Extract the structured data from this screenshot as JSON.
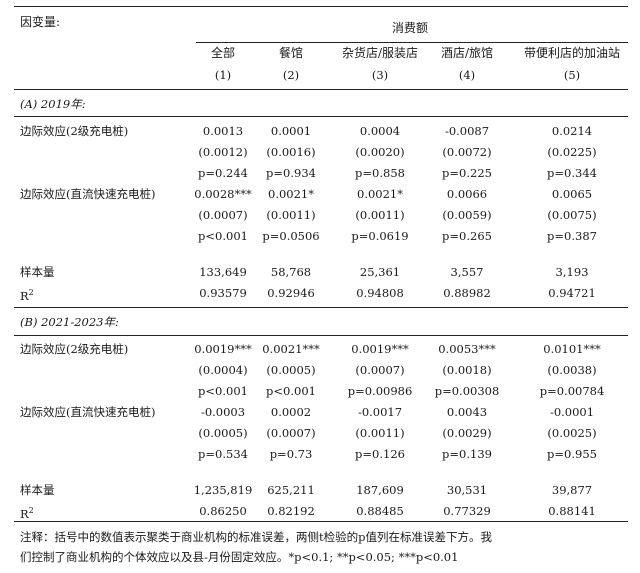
{
  "header": {
    "dep_var_label": "因变量:",
    "group_title": "消费额",
    "columns": [
      {
        "name": "全部",
        "num": "(1)"
      },
      {
        "name": "餐馆",
        "num": "(2)"
      },
      {
        "name": "杂货店/服装店",
        "num": "(3)"
      },
      {
        "name": "酒店/旅馆",
        "num": "(4)"
      },
      {
        "name": "带便利店的加油站",
        "num": "(5)"
      }
    ]
  },
  "panels": [
    {
      "title": "(A) 2019年:",
      "rows": [
        {
          "label": "边际效应(2级充电桩)",
          "cells": [
            "0.0013",
            "0.0001",
            "0.0004",
            "-0.0087",
            "0.0214"
          ]
        },
        {
          "label": "",
          "cells": [
            "(0.0012)",
            "(0.0016)",
            "(0.0020)",
            "(0.0072)",
            "(0.0225)"
          ]
        },
        {
          "label": "",
          "cells": [
            "p=0.244",
            "p=0.934",
            "p=0.858",
            "p=0.225",
            "p=0.344"
          ]
        },
        {
          "label": "边际效应(直流快速充电桩)",
          "cells": [
            "0.0028***",
            "0.0021*",
            "0.0021*",
            "0.0066",
            "0.0065"
          ]
        },
        {
          "label": "",
          "cells": [
            "(0.0007)",
            "(0.0011)",
            "(0.0011)",
            "(0.0059)",
            "(0.0075)"
          ]
        },
        {
          "label": "",
          "cells": [
            "p<0.001",
            "p=0.0506",
            "p=0.0619",
            "p=0.265",
            "p=0.387"
          ]
        }
      ],
      "stats": [
        {
          "label": "样本量",
          "cells": [
            "133,649",
            "58,768",
            "25,361",
            "3,557",
            "3,193"
          ]
        },
        {
          "label": "R",
          "sup": "2",
          "cells": [
            "0.93579",
            "0.92946",
            "0.94808",
            "0.88982",
            "0.94721"
          ]
        }
      ]
    },
    {
      "title": "(B) 2021-2023年:",
      "rows": [
        {
          "label": "边际效应(2级充电桩)",
          "cells": [
            "0.0019***",
            "0.0021***",
            "0.0019***",
            "0.0053***",
            "0.0101***"
          ]
        },
        {
          "label": "",
          "cells": [
            "(0.0004)",
            "(0.0005)",
            "(0.0007)",
            "(0.0018)",
            "(0.0038)"
          ]
        },
        {
          "label": "",
          "cells": [
            "p<0.001",
            "p<0.001",
            "p=0.00986",
            "p=0.00308",
            "p=0.00784"
          ]
        },
        {
          "label": "边际效应(直流快速充电桩)",
          "cells": [
            "-0.0003",
            "0.0002",
            "-0.0017",
            "0.0043",
            "-0.0001"
          ]
        },
        {
          "label": "",
          "cells": [
            "(0.0005)",
            "(0.0007)",
            "(0.0011)",
            "(0.0029)",
            "(0.0025)"
          ]
        },
        {
          "label": "",
          "cells": [
            "p=0.534",
            "p=0.73",
            "p=0.126",
            "p=0.139",
            "p=0.955"
          ]
        }
      ],
      "stats": [
        {
          "label": "样本量",
          "cells": [
            "1,235,819",
            "625,211",
            "187,609",
            "30,531",
            "39,877"
          ]
        },
        {
          "label": "R",
          "sup": "2",
          "cells": [
            "0.86250",
            "0.82192",
            "0.88485",
            "0.77329",
            "0.88141"
          ]
        }
      ]
    }
  ],
  "notes": {
    "line1": "注释：括号中的数值表示聚类于商业机构的标准误差，两侧t检验的p值列在标准误差下方。我",
    "line2": "们控制了商业机构的个体效应以及县-月份固定效应。*p<0.1; **p<0.05; ***p<0.01"
  }
}
